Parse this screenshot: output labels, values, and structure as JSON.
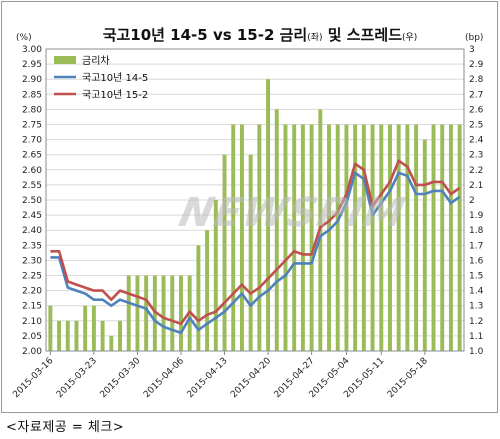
{
  "chart_data": {
    "type": "bar+line",
    "title_main": "국고10년  14-5  vs 15-2  금리",
    "title_sub1": "(좌)",
    "title_mid": " 및 스프레드",
    "title_sub2": "(우)",
    "ylabel_left": "(%)",
    "ylabel_right": "(bp)",
    "ylim_left": [
      2.0,
      3.0
    ],
    "ylim_right": [
      1.0,
      3.0
    ],
    "left_ticks": [
      "3.00",
      "2.95",
      "2.90",
      "2.85",
      "2.80",
      "2.75",
      "2.70",
      "2.65",
      "2.60",
      "2.55",
      "2.50",
      "2.45",
      "2.40",
      "2.35",
      "2.30",
      "2.25",
      "2.20",
      "2.15",
      "2.10",
      "2.05",
      "2.00"
    ],
    "right_ticks": [
      "3",
      "2.9",
      "2.8",
      "2.7",
      "2.6",
      "2.5",
      "2.4",
      "2.3",
      "2.2",
      "2.1",
      "2",
      "1.9",
      "1.8",
      "1.7",
      "1.6",
      "1.5",
      "1.4",
      "1.3",
      "1.2",
      "1.1",
      "1.0"
    ],
    "x_ticks": [
      "2015-03-16",
      "2015-03-23",
      "2015-03-30",
      "2015-04-06",
      "2015-04-13",
      "2015-04-20",
      "2015-04-27",
      "2015-05-04",
      "2015-05-11",
      "2015-05-18"
    ],
    "legend": [
      {
        "label": "금리차",
        "color": "#9bbb59"
      },
      {
        "label": "국고10년 14-5",
        "color": "#4f81bd"
      },
      {
        "label": "국고10년 15-2",
        "color": "#c0504d"
      }
    ],
    "x": [
      "2015-03-16",
      "2015-03-17",
      "2015-03-18",
      "2015-03-19",
      "2015-03-20",
      "2015-03-23",
      "2015-03-24",
      "2015-03-25",
      "2015-03-26",
      "2015-03-27",
      "2015-03-30",
      "2015-03-31",
      "2015-04-01",
      "2015-04-02",
      "2015-04-03",
      "2015-04-06",
      "2015-04-07",
      "2015-04-08",
      "2015-04-09",
      "2015-04-10",
      "2015-04-13",
      "2015-04-14",
      "2015-04-15",
      "2015-04-16",
      "2015-04-17",
      "2015-04-20",
      "2015-04-21",
      "2015-04-22",
      "2015-04-23",
      "2015-04-24",
      "2015-04-27",
      "2015-04-28",
      "2015-04-29",
      "2015-04-30",
      "2015-05-04",
      "2015-05-06",
      "2015-05-07",
      "2015-05-08",
      "2015-05-11",
      "2015-05-12",
      "2015-05-13",
      "2015-05-14",
      "2015-05-15",
      "2015-05-18",
      "2015-05-19",
      "2015-05-20",
      "2015-05-21",
      "2015-05-22"
    ],
    "series": [
      {
        "name": "금리차",
        "axis": "right",
        "kind": "bar",
        "values": [
          1.3,
          1.2,
          1.2,
          1.2,
          1.3,
          1.3,
          1.2,
          1.1,
          1.2,
          1.5,
          1.5,
          1.5,
          1.5,
          1.5,
          1.5,
          1.5,
          1.5,
          1.7,
          1.8,
          2.0,
          2.3,
          2.5,
          2.5,
          2.3,
          2.5,
          2.8,
          2.6,
          2.5,
          2.5,
          2.5,
          2.5,
          2.6,
          2.5,
          2.5,
          2.5,
          2.5,
          2.5,
          2.5,
          2.5,
          2.5,
          2.5,
          2.5,
          2.5,
          2.4,
          2.5,
          2.5,
          2.5,
          2.5
        ]
      },
      {
        "name": "국고10년 14-5",
        "axis": "left",
        "kind": "line",
        "values": [
          2.31,
          2.31,
          2.21,
          2.2,
          2.19,
          2.17,
          2.17,
          2.15,
          2.17,
          2.16,
          2.15,
          2.14,
          2.1,
          2.08,
          2.07,
          2.06,
          2.11,
          2.07,
          2.09,
          2.11,
          2.13,
          2.16,
          2.19,
          2.15,
          2.18,
          2.2,
          2.23,
          2.25,
          2.29,
          2.29,
          2.29,
          2.38,
          2.4,
          2.43,
          2.49,
          2.59,
          2.57,
          2.45,
          2.49,
          2.53,
          2.59,
          2.58,
          2.52,
          2.52,
          2.53,
          2.53,
          2.49,
          2.51
        ]
      },
      {
        "name": "국고10년 15-2",
        "axis": "left",
        "kind": "line",
        "values": [
          2.33,
          2.33,
          2.23,
          2.22,
          2.21,
          2.2,
          2.2,
          2.17,
          2.2,
          2.19,
          2.18,
          2.17,
          2.13,
          2.11,
          2.1,
          2.09,
          2.13,
          2.1,
          2.12,
          2.13,
          2.16,
          2.19,
          2.22,
          2.19,
          2.21,
          2.24,
          2.27,
          2.3,
          2.33,
          2.32,
          2.32,
          2.41,
          2.43,
          2.46,
          2.52,
          2.62,
          2.6,
          2.48,
          2.52,
          2.56,
          2.63,
          2.61,
          2.55,
          2.55,
          2.56,
          2.56,
          2.52,
          2.54
        ]
      }
    ]
  },
  "source_note": "<자료제공 = 체크>",
  "watermark": "NEWSPIM"
}
